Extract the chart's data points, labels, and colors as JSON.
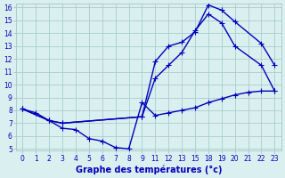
{
  "xlabel": "Graphe des températures (°c)",
  "background_color": "#daf0f0",
  "grid_color": "#aacccc",
  "line_color": "#0000bb",
  "ylim": [
    5,
    16
  ],
  "yticks": [
    5,
    6,
    7,
    8,
    9,
    10,
    11,
    12,
    13,
    14,
    15,
    16
  ],
  "xlabels": [
    "0",
    "1",
    "2",
    "3",
    "4",
    "5",
    "6",
    "7",
    "8",
    "9",
    "11",
    "12",
    "13",
    "15",
    "18",
    "19",
    "20",
    "21",
    "22",
    "23"
  ],
  "line1_x": [
    0,
    1,
    2,
    3,
    4,
    5,
    6,
    7,
    8,
    9,
    10,
    11,
    12,
    13,
    14,
    15,
    16,
    17,
    18,
    19
  ],
  "line1_y": [
    8.1,
    7.8,
    7.2,
    6.6,
    6.5,
    5.8,
    5.6,
    5.1,
    5.0,
    8.6,
    7.6,
    7.8,
    8.0,
    8.2,
    8.6,
    8.9,
    9.2,
    9.4,
    9.5,
    9.5
  ],
  "line2_x": [
    0,
    2,
    3,
    9,
    10,
    11,
    12,
    13,
    14,
    15,
    16,
    18,
    19
  ],
  "line2_y": [
    8.1,
    7.2,
    7.0,
    7.5,
    10.5,
    11.5,
    12.5,
    14.2,
    15.5,
    14.8,
    13.0,
    11.5,
    9.5
  ],
  "line3_x": [
    0,
    2,
    3,
    9,
    10,
    11,
    12,
    13,
    14,
    15,
    16,
    18,
    19
  ],
  "line3_y": [
    8.1,
    7.2,
    7.0,
    7.5,
    11.8,
    13.0,
    13.3,
    14.1,
    16.2,
    15.8,
    14.9,
    13.2,
    11.5
  ],
  "marker_size": 4,
  "linewidth": 1.0,
  "tick_fontsize": 5.5,
  "label_fontsize": 7.0
}
